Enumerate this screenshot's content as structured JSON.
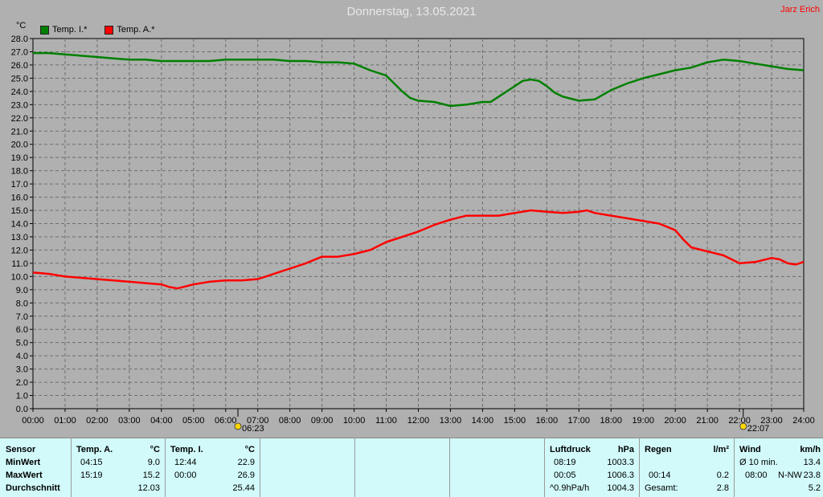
{
  "header": {
    "title": "Donnerstag, 13.05.2021",
    "author": "Jarz Erich",
    "unit": "°C"
  },
  "colors": {
    "inside": "#008000",
    "outside": "#ff0000",
    "background": "#b0b0b0",
    "panel": "#d2fafa"
  },
  "chart_data": {
    "type": "line",
    "title": "Donnerstag, 13.05.2021",
    "ylabel": "°C",
    "ylim": [
      0,
      28
    ],
    "y_ticks": [
      "0.0",
      "1.0",
      "2.0",
      "3.0",
      "4.0",
      "5.0",
      "6.0",
      "7.0",
      "8.0",
      "9.0",
      "10.0",
      "11.0",
      "12.0",
      "13.0",
      "14.0",
      "15.0",
      "16.0",
      "17.0",
      "18.0",
      "19.0",
      "20.0",
      "21.0",
      "22.0",
      "23.0",
      "24.0",
      "25.0",
      "26.0",
      "27.0",
      "28.0"
    ],
    "x_ticks": [
      "00:00",
      "01:00",
      "02:00",
      "03:00",
      "04:00",
      "05:00",
      "06:00",
      "07:00",
      "08:00",
      "09:00",
      "10:00",
      "11:00",
      "12:00",
      "13:00",
      "14:00",
      "15:00",
      "16:00",
      "17:00",
      "18:00",
      "19:00",
      "20:00",
      "21:00",
      "22:00",
      "23:00",
      "24:00"
    ],
    "grid": true,
    "legend_position": "top-left",
    "markers": [
      {
        "label": "06:23",
        "x": 6.383,
        "icon": "sunrise-icon"
      },
      {
        "label": "22:07",
        "x": 22.117,
        "icon": "sunset-icon"
      }
    ],
    "series": [
      {
        "name": "Temp. I.*",
        "color": "#008000",
        "x": [
          0,
          0.5,
          1,
          1.5,
          2,
          2.5,
          3,
          3.5,
          4,
          4.5,
          5,
          5.5,
          6,
          6.5,
          7,
          7.5,
          8,
          8.5,
          9,
          9.5,
          10,
          10.5,
          11,
          11.25,
          11.5,
          11.75,
          12,
          12.5,
          13,
          13.5,
          14,
          14.25,
          14.5,
          15,
          15.25,
          15.5,
          15.75,
          16,
          16.25,
          16.5,
          17,
          17.5,
          18,
          18.5,
          19,
          19.5,
          20,
          20.5,
          21,
          21.5,
          22,
          22.5,
          23,
          23.5,
          24
        ],
        "values": [
          26.9,
          26.9,
          26.8,
          26.7,
          26.6,
          26.5,
          26.4,
          26.4,
          26.3,
          26.3,
          26.3,
          26.3,
          26.4,
          26.4,
          26.4,
          26.4,
          26.3,
          26.3,
          26.2,
          26.2,
          26.1,
          25.6,
          25.2,
          24.6,
          24.0,
          23.5,
          23.3,
          23.2,
          22.9,
          23.0,
          23.2,
          23.2,
          23.6,
          24.4,
          24.8,
          24.9,
          24.8,
          24.4,
          23.9,
          23.6,
          23.3,
          23.4,
          24.1,
          24.6,
          25.0,
          25.3,
          25.6,
          25.8,
          26.2,
          26.4,
          26.3,
          26.1,
          25.9,
          25.7,
          25.6
        ]
      },
      {
        "name": "Temp. A.*",
        "color": "#ff0000",
        "x": [
          0,
          0.5,
          1,
          1.5,
          2,
          2.5,
          3,
          3.5,
          4,
          4.25,
          4.5,
          5,
          5.5,
          6,
          6.5,
          7,
          7.25,
          7.5,
          8,
          8.5,
          9,
          9.5,
          10,
          10.5,
          11,
          11.5,
          12,
          12.5,
          13,
          13.5,
          14,
          14.5,
          15,
          15.25,
          15.5,
          16,
          16.5,
          17,
          17.25,
          17.5,
          18,
          18.5,
          19,
          19.5,
          20,
          20.25,
          20.5,
          21,
          21.5,
          22,
          22.5,
          23,
          23.25,
          23.5,
          23.75,
          24
        ],
        "values": [
          10.3,
          10.2,
          10.0,
          9.9,
          9.8,
          9.7,
          9.6,
          9.5,
          9.4,
          9.2,
          9.1,
          9.4,
          9.6,
          9.7,
          9.7,
          9.8,
          10.0,
          10.2,
          10.6,
          11.0,
          11.5,
          11.5,
          11.7,
          12.0,
          12.6,
          13.0,
          13.4,
          13.9,
          14.3,
          14.6,
          14.6,
          14.6,
          14.8,
          14.9,
          15.0,
          14.9,
          14.8,
          14.9,
          15.0,
          14.8,
          14.6,
          14.4,
          14.2,
          14.0,
          13.5,
          12.8,
          12.2,
          11.9,
          11.6,
          11.0,
          11.1,
          11.4,
          11.3,
          11.0,
          10.9,
          11.1
        ]
      }
    ]
  },
  "panel": {
    "sensor": {
      "header": "Sensor",
      "min": "MinWert",
      "max": "MaxWert",
      "avg": "Durchschnitt"
    },
    "temp_a": {
      "header": "Temp. A.",
      "unit": "°C",
      "min_time": "04:15",
      "min_val": "9.0",
      "max_time": "15:19",
      "max_val": "15.2",
      "avg_val": "12.03"
    },
    "temp_i": {
      "header": "Temp. I.",
      "unit": "°C",
      "min_time": "12:44",
      "min_val": "22.9",
      "max_time": "00:00",
      "max_val": "26.9",
      "avg_val": "25.44"
    },
    "pressure": {
      "header": "Luftdruck",
      "unit": "hPa",
      "min_time": "08:19",
      "min_val": "1003.3",
      "max_time": "00:05",
      "max_val": "1006.3",
      "trend_label": "^0.9hPa/h",
      "trend_val": "1004.3"
    },
    "rain": {
      "header": "Regen",
      "unit": "l/m²",
      "time": "00:14",
      "val": "0.2",
      "total_label": "Gesamt:",
      "total_val": "2.8"
    },
    "wind": {
      "header": "Wind",
      "unit": "km/h",
      "avg_label": "Ø 10 min.",
      "avg_val": "13.4",
      "max_time": "08:00",
      "max_dir": "N-NW",
      "max_val": "23.8",
      "last_val": "5.2"
    }
  }
}
